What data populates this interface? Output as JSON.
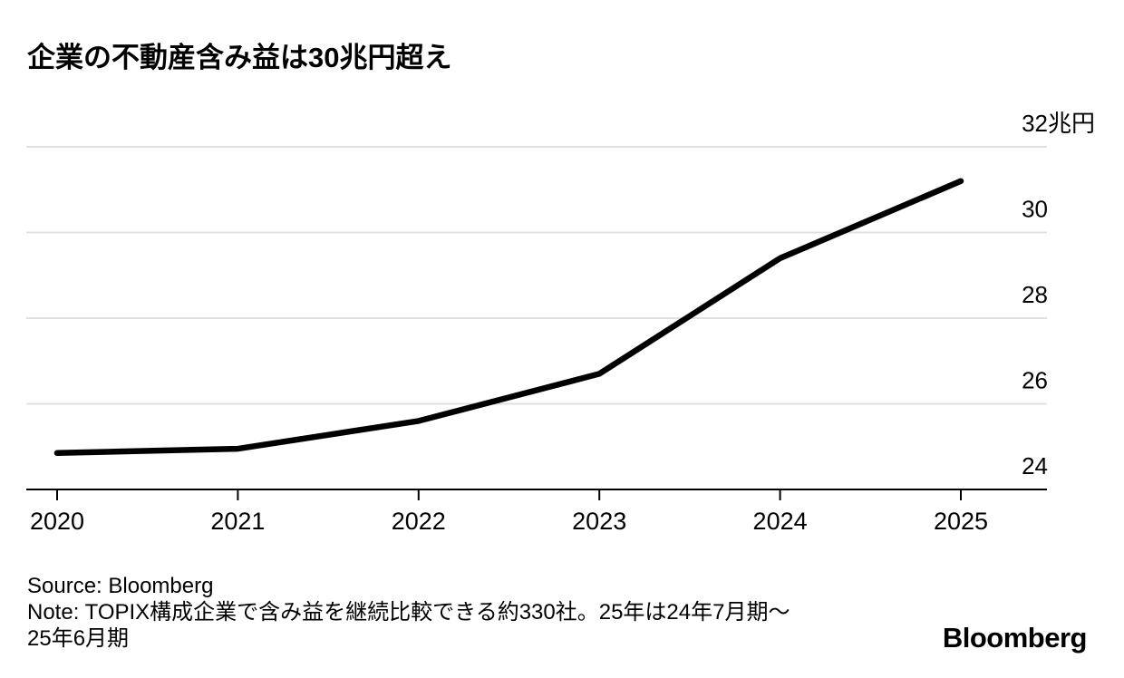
{
  "title": "企業の不動産含み益は30兆円超え",
  "chart_data": {
    "type": "line",
    "title": "企業の不動産含み益は30兆円超え",
    "x": [
      "2020",
      "2021",
      "2022",
      "2023",
      "2024",
      "2025"
    ],
    "values": [
      24.85,
      24.95,
      25.6,
      26.7,
      29.4,
      31.2
    ],
    "ylim": [
      24,
      32
    ],
    "y_ticks": [
      24,
      26,
      28,
      30,
      32
    ],
    "y_unit_suffix": "兆円",
    "xlabel": "",
    "ylabel": "",
    "legend": "none",
    "grid": "horizontal-only",
    "line_color": "#000000",
    "grid_color": "#e0e0e0",
    "axis_color": "#000000"
  },
  "footer": {
    "source": "Source: Bloomberg",
    "note_lines": [
      "Note: TOPIX構成企業で含み益を継続比較できる約330社。25年は24年7月期〜",
      "25年6月期"
    ],
    "brand": "Bloomberg"
  }
}
